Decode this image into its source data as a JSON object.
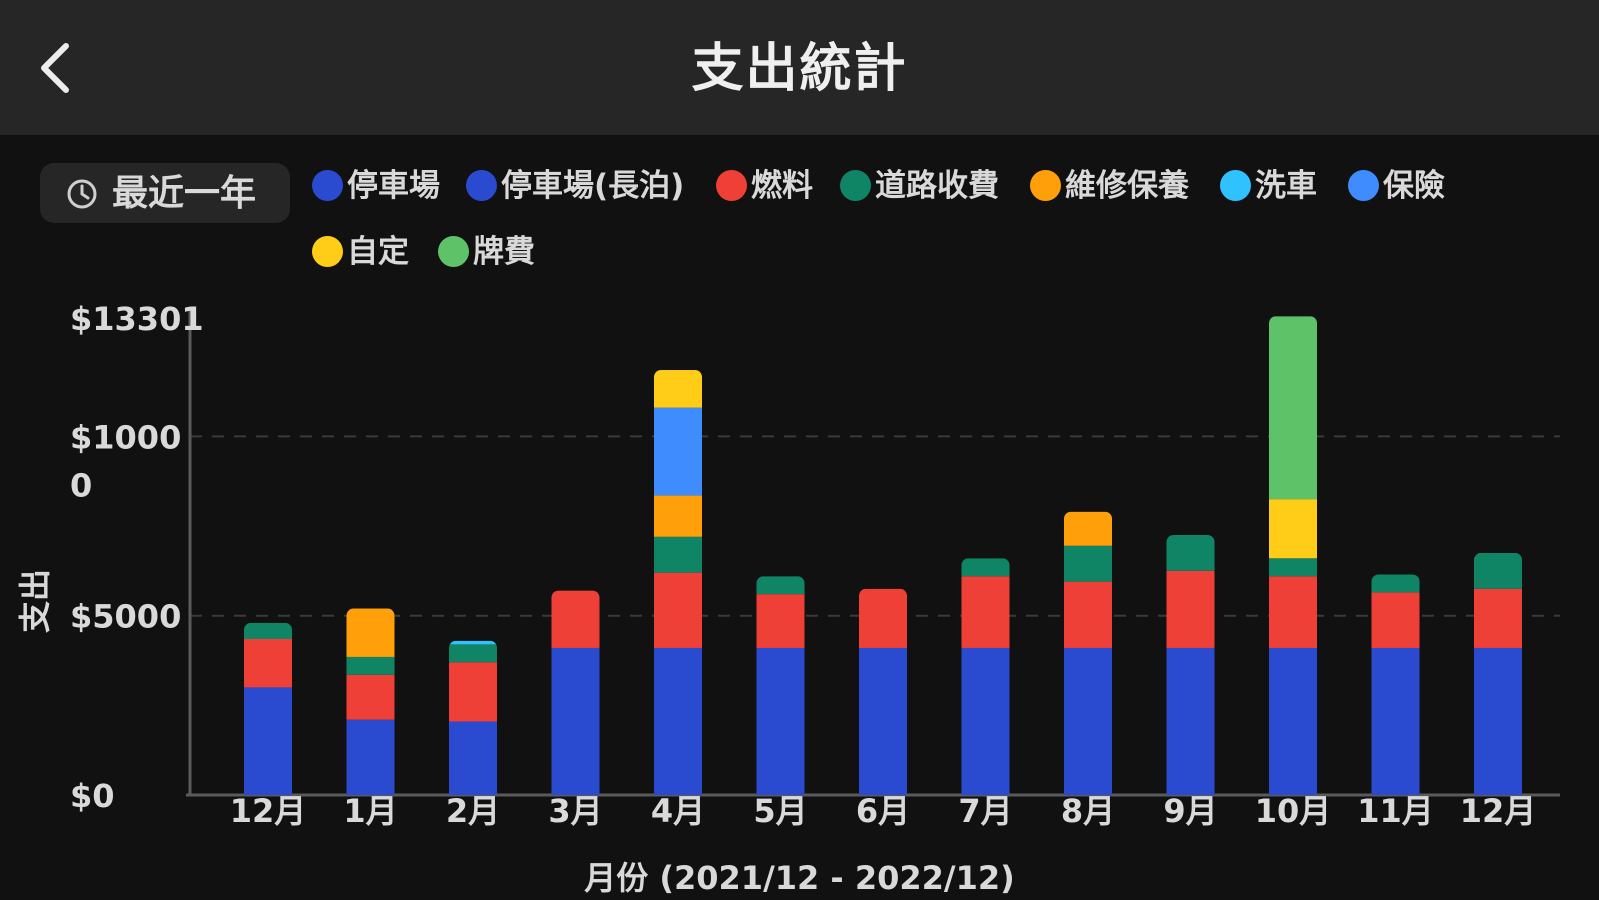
{
  "header": {
    "title": "支出統計",
    "back_icon": "chevron-left-icon"
  },
  "filter": {
    "range_label": "最近一年",
    "icon": "clock-icon"
  },
  "legend": [
    {
      "label": "停車場",
      "color": "#2a4bcf"
    },
    {
      "label": "停車場(長泊)",
      "color": "#2a4bcf"
    },
    {
      "label": "燃料",
      "color": "#ef4038"
    },
    {
      "label": "道路收費",
      "color": "#0f8566"
    },
    {
      "label": "維修保養",
      "color": "#ff9f0a"
    },
    {
      "label": "洗車",
      "color": "#30c2ff"
    },
    {
      "label": "保險",
      "color": "#3f8cff"
    },
    {
      "label": "自定",
      "color": "#ffcc17"
    },
    {
      "label": "牌費",
      "color": "#5ec269"
    }
  ],
  "chart_data": {
    "type": "bar",
    "stacked": true,
    "xlabel": "月份 (2021/12 - 2022/12)",
    "ylabel": "支出",
    "ytick_labels": [
      "$0",
      "$5000",
      "$1000\n0",
      "$13301"
    ],
    "yticks": [
      0,
      5000,
      10000,
      13301
    ],
    "ylim": [
      0,
      13301
    ],
    "grid": "dashed horizontal at $5000 and $10000",
    "categories": [
      "12月",
      "1月",
      "2月",
      "3月",
      "4月",
      "5月",
      "6月",
      "7月",
      "8月",
      "9月",
      "10月",
      "11月",
      "12月"
    ],
    "series": [
      {
        "name": "停車場",
        "color": "#2a4bcf",
        "values": [
          3000,
          2100,
          2050,
          4100,
          4100,
          4100,
          4100,
          4100,
          4100,
          4100,
          4100,
          4100,
          4100
        ]
      },
      {
        "name": "燃料",
        "color": "#ef4038",
        "values": [
          1350,
          1250,
          1650,
          1600,
          2100,
          1500,
          1650,
          2000,
          1850,
          2150,
          2000,
          1550,
          1650
        ]
      },
      {
        "name": "道路收費",
        "color": "#0f8566",
        "values": [
          450,
          500,
          500,
          0,
          1000,
          500,
          0,
          500,
          1000,
          1000,
          500,
          500,
          1000
        ]
      },
      {
        "name": "維修保養",
        "color": "#ff9f0a",
        "values": [
          0,
          1350,
          0,
          0,
          1150,
          0,
          0,
          0,
          950,
          0,
          0,
          0,
          0
        ]
      },
      {
        "name": "洗車",
        "color": "#30c2ff",
        "values": [
          0,
          0,
          100,
          0,
          0,
          0,
          0,
          0,
          0,
          0,
          0,
          0,
          0
        ]
      },
      {
        "name": "保險",
        "color": "#3f8cff",
        "values": [
          0,
          0,
          0,
          0,
          2450,
          0,
          0,
          0,
          0,
          0,
          0,
          0,
          0
        ]
      },
      {
        "name": "自定",
        "color": "#ffcc17",
        "values": [
          0,
          0,
          0,
          0,
          1050,
          0,
          0,
          0,
          0,
          0,
          1650,
          0,
          0
        ]
      },
      {
        "name": "牌費",
        "color": "#5ec269",
        "values": [
          0,
          0,
          0,
          0,
          0,
          0,
          0,
          0,
          0,
          0,
          5100,
          0,
          0
        ]
      }
    ]
  }
}
